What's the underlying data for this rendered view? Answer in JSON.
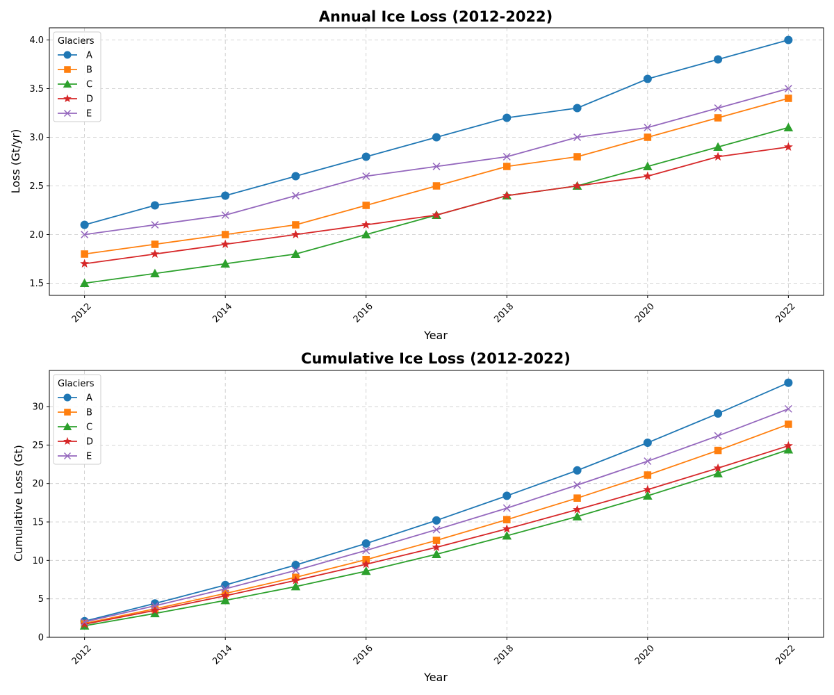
{
  "chart_data": [
    {
      "type": "line",
      "title": "Annual Ice Loss (2012-2022)",
      "xlabel": "Year",
      "ylabel": "Loss (Gt/yr)",
      "x": [
        2012,
        2013,
        2014,
        2015,
        2016,
        2017,
        2018,
        2019,
        2020,
        2021,
        2022
      ],
      "xticks": [
        2012,
        2014,
        2016,
        2018,
        2020,
        2022
      ],
      "yticks": [
        1.5,
        2.0,
        2.5,
        3.0,
        3.5,
        4.0
      ],
      "xlim": [
        2011.5,
        2022.5
      ],
      "ylim": [
        1.375,
        4.125
      ],
      "grid": true,
      "legend": {
        "title": "Glaciers",
        "position": "top-left"
      },
      "series": [
        {
          "name": "A",
          "color": "#1f77b4",
          "marker": "circle",
          "values": [
            2.1,
            2.3,
            2.4,
            2.6,
            2.8,
            3.0,
            3.2,
            3.3,
            3.6,
            3.8,
            4.0
          ]
        },
        {
          "name": "B",
          "color": "#ff7f0e",
          "marker": "square",
          "values": [
            1.8,
            1.9,
            2.0,
            2.1,
            2.3,
            2.5,
            2.7,
            2.8,
            3.0,
            3.2,
            3.4
          ]
        },
        {
          "name": "C",
          "color": "#2ca02c",
          "marker": "triangle",
          "values": [
            1.5,
            1.6,
            1.7,
            1.8,
            2.0,
            2.2,
            2.4,
            2.5,
            2.7,
            2.9,
            3.1
          ]
        },
        {
          "name": "D",
          "color": "#d62728",
          "marker": "star",
          "values": [
            1.7,
            1.8,
            1.9,
            2.0,
            2.1,
            2.2,
            2.4,
            2.5,
            2.6,
            2.8,
            2.9
          ]
        },
        {
          "name": "E",
          "color": "#9467bd",
          "marker": "x",
          "values": [
            2.0,
            2.1,
            2.2,
            2.4,
            2.6,
            2.7,
            2.8,
            3.0,
            3.1,
            3.3,
            3.5
          ]
        }
      ]
    },
    {
      "type": "line",
      "title": "Cumulative Ice Loss (2012-2022)",
      "xlabel": "Year",
      "ylabel": "Cumulative Loss (Gt)",
      "x": [
        2012,
        2013,
        2014,
        2015,
        2016,
        2017,
        2018,
        2019,
        2020,
        2021,
        2022
      ],
      "xticks": [
        2012,
        2014,
        2016,
        2018,
        2020,
        2022
      ],
      "yticks": [
        0,
        5,
        10,
        15,
        20,
        25,
        30
      ],
      "xlim": [
        2011.5,
        2022.5
      ],
      "ylim": [
        0,
        34.7
      ],
      "grid": true,
      "legend": {
        "title": "Glaciers",
        "position": "top-left"
      },
      "series": [
        {
          "name": "A",
          "color": "#1f77b4",
          "marker": "circle",
          "values": [
            2.1,
            4.4,
            6.8,
            9.4,
            12.2,
            15.2,
            18.4,
            21.7,
            25.3,
            29.1,
            33.1
          ]
        },
        {
          "name": "B",
          "color": "#ff7f0e",
          "marker": "square",
          "values": [
            1.8,
            3.7,
            5.7,
            7.8,
            10.1,
            12.6,
            15.3,
            18.1,
            21.1,
            24.3,
            27.7
          ]
        },
        {
          "name": "C",
          "color": "#2ca02c",
          "marker": "triangle",
          "values": [
            1.5,
            3.1,
            4.8,
            6.6,
            8.6,
            10.8,
            13.2,
            15.7,
            18.4,
            21.3,
            24.4
          ]
        },
        {
          "name": "D",
          "color": "#d62728",
          "marker": "star",
          "values": [
            1.7,
            3.5,
            5.4,
            7.4,
            9.5,
            11.7,
            14.1,
            16.6,
            19.2,
            22.0,
            24.9
          ]
        },
        {
          "name": "E",
          "color": "#9467bd",
          "marker": "x",
          "values": [
            2.0,
            4.1,
            6.3,
            8.7,
            11.3,
            14.0,
            16.8,
            19.8,
            22.9,
            26.2,
            29.7
          ]
        }
      ]
    }
  ]
}
